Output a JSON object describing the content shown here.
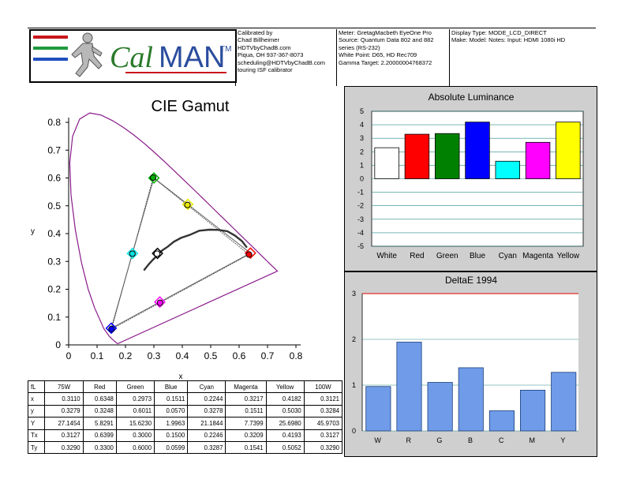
{
  "header": {
    "logo_text_cal": "Cal",
    "logo_text_man": "MAN",
    "logo_tm": "TM",
    "calibrated_by": [
      "Calibrated by",
      "Chad Billheimer",
      "HDTVbyChadB.com",
      "Piqua, OH 937-367-8073",
      "scheduling@HDTVbyChadB.com",
      "touring ISF calibrator"
    ],
    "meter_info": [
      "Meter: GretagMacbeth EyeOne Pro",
      "Source: Quantum Data 802 and 882",
      "series (RS-232)",
      "White Point: D65, HD Rec709",
      "Gamma Target: 2.20000004768372"
    ],
    "display_info": [
      "Display Type: MODE_LCD_DIRECT",
      "Make: Model: Notes: Input: HDMI 1080i HD"
    ],
    "colors": {
      "red": "#c8161d",
      "green": "#1e9a3c",
      "blue": "#1f4fbf",
      "brand_green": "#2a7a2a",
      "brand_blue": "#2b4d9e"
    }
  },
  "gamut_chart": {
    "title": "CIE Gamut",
    "xlabel": "x",
    "ylabel": "y",
    "x_ticks": [
      "0",
      "0.1",
      "0.2",
      "0.3",
      "0.4",
      "0.5",
      "0.6",
      "0.7",
      "0.8"
    ],
    "y_ticks": [
      "0",
      "0.1",
      "0.2",
      "0.3",
      "0.4",
      "0.5",
      "0.6",
      "0.7",
      "0.8"
    ]
  },
  "lum_chart": {
    "title": "Absolute Luminance",
    "y_ticks": [
      "5",
      "4",
      "3",
      "2",
      "1",
      "0",
      "-1",
      "-2",
      "-3",
      "-4",
      "-5"
    ]
  },
  "de_chart": {
    "title": "DeltaE 1994",
    "y_ticks": [
      "3",
      "2",
      "1",
      "0"
    ]
  },
  "table": {
    "headers": [
      "fL",
      "75W",
      "Red",
      "Green",
      "Blue",
      "Cyan",
      "Magenta",
      "Yellow",
      "100W"
    ],
    "rows": [
      {
        "label": "x",
        "cells": [
          "0.3110",
          "0.6348",
          "0.2973",
          "0.1511",
          "0.2244",
          "0.3217",
          "0.4182",
          "0.3121"
        ]
      },
      {
        "label": "y",
        "cells": [
          "0.3279",
          "0.3248",
          "0.6011",
          "0.0570",
          "0.3278",
          "0.1511",
          "0.5030",
          "0.3284"
        ]
      },
      {
        "label": "Y",
        "cells": [
          "27.1454",
          "5.8291",
          "15.6230",
          "1.9963",
          "21.1844",
          "7.7399",
          "25.6980",
          "45.9703"
        ]
      },
      {
        "label": "Tx",
        "cells": [
          "0.3127",
          "0.6399",
          "0.3000",
          "0.1500",
          "0.2246",
          "0.3209",
          "0.4193",
          "0.3127"
        ]
      },
      {
        "label": "Ty",
        "cells": [
          "0.3290",
          "0.3300",
          "0.6000",
          "0.0599",
          "0.3287",
          "0.1541",
          "0.5052",
          "0.3290"
        ]
      }
    ]
  },
  "chart_data": [
    {
      "type": "scatter",
      "title": "CIE Gamut",
      "xlabel": "x",
      "ylabel": "y",
      "xlim": [
        0,
        0.8
      ],
      "ylim": [
        0,
        0.8
      ],
      "grid": false,
      "series": [
        {
          "name": "Red",
          "measured": [
            0.6348,
            0.3248
          ],
          "target": [
            0.6399,
            0.33
          ],
          "color": "#ff0000"
        },
        {
          "name": "Green",
          "measured": [
            0.2973,
            0.6011
          ],
          "target": [
            0.3,
            0.6
          ],
          "color": "#00b000"
        },
        {
          "name": "Blue",
          "measured": [
            0.1511,
            0.057
          ],
          "target": [
            0.15,
            0.0599
          ],
          "color": "#0000ff"
        },
        {
          "name": "Cyan",
          "measured": [
            0.2244,
            0.3278
          ],
          "target": [
            0.2246,
            0.3287
          ],
          "color": "#00e0e0"
        },
        {
          "name": "Magenta",
          "measured": [
            0.3217,
            0.1511
          ],
          "target": [
            0.3209,
            0.1541
          ],
          "color": "#ff00ff"
        },
        {
          "name": "Yellow",
          "measured": [
            0.4182,
            0.503
          ],
          "target": [
            0.4193,
            0.5052
          ],
          "color": "#e8e800"
        },
        {
          "name": "White",
          "measured": [
            0.311,
            0.3279
          ],
          "target": [
            0.3127,
            0.329
          ],
          "color": "#ffffff"
        }
      ],
      "locus": [
        [
          0.1741,
          0.005
        ],
        [
          0.1738,
          0.0049
        ],
        [
          0.1733,
          0.0048
        ],
        [
          0.1726,
          0.0048
        ],
        [
          0.1714,
          0.0051
        ],
        [
          0.1689,
          0.0069
        ],
        [
          0.1644,
          0.0109
        ],
        [
          0.1566,
          0.0177
        ],
        [
          0.144,
          0.0297
        ],
        [
          0.1241,
          0.0578
        ],
        [
          0.0913,
          0.1327
        ],
        [
          0.0687,
          0.2007
        ],
        [
          0.0454,
          0.295
        ],
        [
          0.0235,
          0.4127
        ],
        [
          0.0082,
          0.5384
        ],
        [
          0.0039,
          0.6548
        ],
        [
          0.0139,
          0.7502
        ],
        [
          0.0389,
          0.812
        ],
        [
          0.0743,
          0.8338
        ],
        [
          0.1142,
          0.8262
        ],
        [
          0.1547,
          0.8059
        ],
        [
          0.1929,
          0.7816
        ],
        [
          0.2296,
          0.7543
        ],
        [
          0.2658,
          0.7243
        ],
        [
          0.3016,
          0.6923
        ],
        [
          0.3373,
          0.6589
        ],
        [
          0.3731,
          0.6245
        ],
        [
          0.4087,
          0.5896
        ],
        [
          0.4441,
          0.5547
        ],
        [
          0.4788,
          0.5202
        ],
        [
          0.5125,
          0.4866
        ],
        [
          0.5448,
          0.4544
        ],
        [
          0.5752,
          0.4242
        ],
        [
          0.6029,
          0.3965
        ],
        [
          0.627,
          0.3725
        ],
        [
          0.6482,
          0.3514
        ],
        [
          0.6658,
          0.334
        ],
        [
          0.6801,
          0.3197
        ],
        [
          0.6915,
          0.3083
        ],
        [
          0.7006,
          0.2993
        ],
        [
          0.7079,
          0.292
        ],
        [
          0.714,
          0.2859
        ],
        [
          0.719,
          0.2809
        ],
        [
          0.723,
          0.277
        ],
        [
          0.726,
          0.274
        ],
        [
          0.7347,
          0.2653
        ]
      ],
      "planckian": [
        [
          0.2646,
          0.2678
        ],
        [
          0.2807,
          0.2884
        ],
        [
          0.2952,
          0.3048
        ],
        [
          0.3135,
          0.3236
        ],
        [
          0.3291,
          0.3395
        ],
        [
          0.3483,
          0.3525
        ],
        [
          0.3697,
          0.3705
        ],
        [
          0.3955,
          0.3847
        ],
        [
          0.4254,
          0.395
        ],
        [
          0.4599,
          0.4106
        ],
        [
          0.4958,
          0.4143
        ],
        [
          0.5267,
          0.4133
        ],
        [
          0.5586,
          0.4084
        ],
        [
          0.585,
          0.3932
        ],
        [
          0.6102,
          0.3729
        ],
        [
          0.6274,
          0.3498
        ]
      ]
    },
    {
      "type": "bar",
      "title": "Absolute Luminance",
      "categories": [
        "White",
        "Red",
        "Green",
        "Blue",
        "Cyan",
        "Magenta",
        "Yellow"
      ],
      "values": [
        2.3,
        3.3,
        3.35,
        4.2,
        1.3,
        2.7,
        4.2
      ],
      "colors": [
        "#ffffff",
        "#ff0000",
        "#008000",
        "#0000ff",
        "#00ffff",
        "#ff00ff",
        "#ffff00"
      ],
      "ylim": [
        -5,
        5
      ],
      "grid": true
    },
    {
      "type": "bar",
      "title": "DeltaE 1994",
      "categories": [
        "W",
        "R",
        "G",
        "B",
        "C",
        "M",
        "Y"
      ],
      "values": [
        0.97,
        1.94,
        1.06,
        1.38,
        0.44,
        0.89,
        1.28
      ],
      "ylim": [
        0,
        3
      ],
      "threshold": 3,
      "bar_color": "#6f9be8",
      "threshold_color": "#e00000"
    }
  ]
}
